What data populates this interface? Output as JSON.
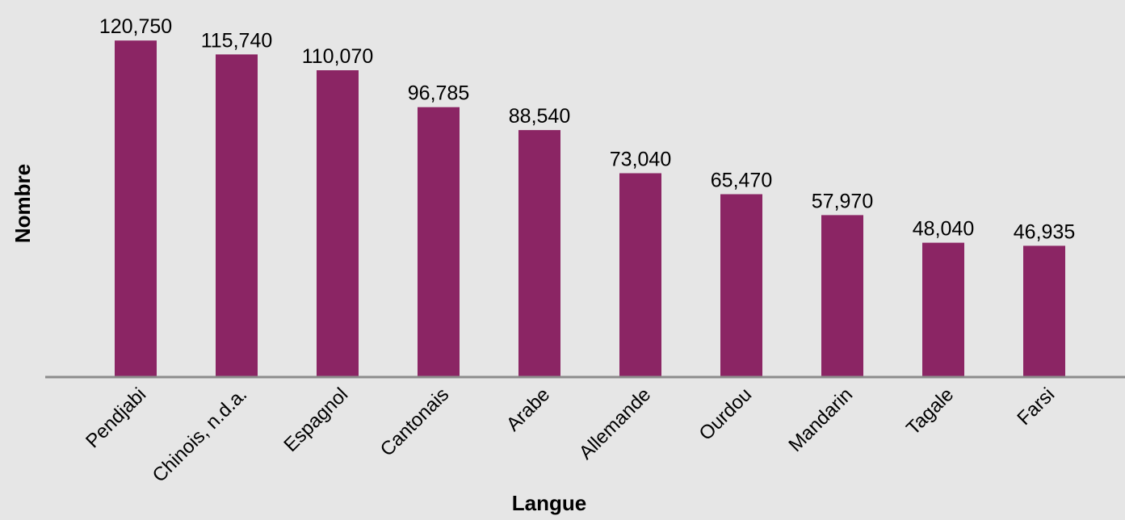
{
  "chart_data": {
    "type": "bar",
    "categories": [
      "Pendjabi",
      "Chinois, n.d.a.",
      "Espagnol",
      "Cantonais",
      "Arabe",
      "Allemande",
      "Ourdou",
      "Mandarin",
      "Tagale",
      "Farsi"
    ],
    "values": [
      120750,
      115740,
      110070,
      96785,
      88540,
      73040,
      65470,
      57970,
      48040,
      46935
    ],
    "value_labels": [
      "120,750",
      "115,740",
      "110,070",
      "96,785",
      "88,540",
      "73,040",
      "65,470",
      "57,970",
      "48,040",
      "46,935"
    ],
    "title": "",
    "xlabel": "Langue",
    "ylabel": "Nombre",
    "ylim": [
      0,
      133000
    ],
    "grid": false,
    "legend": "none",
    "colors": {
      "bar": "#8b2564",
      "axis": "#8c8c8c",
      "background": "#e6e6e6"
    }
  }
}
